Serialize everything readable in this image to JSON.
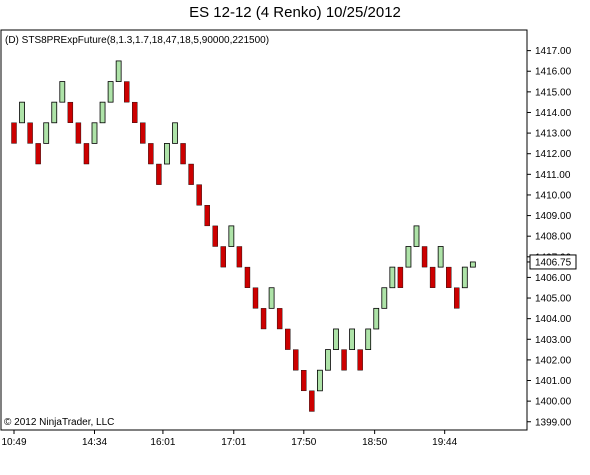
{
  "chart_data": {
    "type": "renko",
    "title": "ES 12-12 (4 Renko)  10/25/2012",
    "strategy_label": "(D) STS8PRExpFuture(8,1.3,1.7,18,47,18,5,90000,221500)",
    "copyright": "© 2012 NinjaTrader, LLC",
    "ylim": [
      1398.6,
      1418.0
    ],
    "y_ticks": [
      "1417.00",
      "1416.00",
      "1415.00",
      "1414.00",
      "1413.00",
      "1412.00",
      "1411.00",
      "1410.00",
      "1409.00",
      "1408.00",
      "1407.00",
      "1406.00",
      "1405.00",
      "1404.00",
      "1403.00",
      "1402.00",
      "1401.00",
      "1400.00",
      "1399.00"
    ],
    "x_ticks": [
      {
        "label": "10:49",
        "bar": 0
      },
      {
        "label": "14:34",
        "bar": 10
      },
      {
        "label": "16:01",
        "bar": 18.5
      },
      {
        "label": "17:01",
        "bar": 27.3
      },
      {
        "label": "17:50",
        "bar": 36
      },
      {
        "label": "18:50",
        "bar": 44.8
      },
      {
        "label": "19:44",
        "bar": 53.5
      }
    ],
    "last_price": {
      "label": "1406.75",
      "value": 1406.75
    },
    "colors": {
      "up": "#aee3a8",
      "down": "#cc0000",
      "outline": "#000000"
    },
    "bricks": [
      {
        "dir": "down",
        "low": 1412.5,
        "high": 1413.5
      },
      {
        "dir": "up",
        "low": 1413.5,
        "high": 1414.5
      },
      {
        "dir": "down",
        "low": 1412.5,
        "high": 1413.5
      },
      {
        "dir": "down",
        "low": 1411.5,
        "high": 1412.5
      },
      {
        "dir": "up",
        "low": 1412.5,
        "high": 1413.5
      },
      {
        "dir": "up",
        "low": 1413.5,
        "high": 1414.5
      },
      {
        "dir": "up",
        "low": 1414.5,
        "high": 1415.5
      },
      {
        "dir": "down",
        "low": 1413.5,
        "high": 1414.5
      },
      {
        "dir": "down",
        "low": 1412.5,
        "high": 1413.5
      },
      {
        "dir": "down",
        "low": 1411.5,
        "high": 1412.5
      },
      {
        "dir": "up",
        "low": 1412.5,
        "high": 1413.5
      },
      {
        "dir": "up",
        "low": 1413.5,
        "high": 1414.5
      },
      {
        "dir": "up",
        "low": 1414.5,
        "high": 1415.5
      },
      {
        "dir": "up",
        "low": 1415.5,
        "high": 1416.5
      },
      {
        "dir": "down",
        "low": 1414.5,
        "high": 1415.5
      },
      {
        "dir": "down",
        "low": 1413.5,
        "high": 1414.5
      },
      {
        "dir": "down",
        "low": 1412.5,
        "high": 1413.5
      },
      {
        "dir": "down",
        "low": 1411.5,
        "high": 1412.5
      },
      {
        "dir": "down",
        "low": 1410.5,
        "high": 1411.5
      },
      {
        "dir": "up",
        "low": 1411.5,
        "high": 1412.5
      },
      {
        "dir": "up",
        "low": 1412.5,
        "high": 1413.5
      },
      {
        "dir": "down",
        "low": 1411.5,
        "high": 1412.5
      },
      {
        "dir": "down",
        "low": 1410.5,
        "high": 1411.5
      },
      {
        "dir": "down",
        "low": 1409.5,
        "high": 1410.5
      },
      {
        "dir": "down",
        "low": 1408.5,
        "high": 1409.5
      },
      {
        "dir": "down",
        "low": 1407.5,
        "high": 1408.5
      },
      {
        "dir": "down",
        "low": 1406.5,
        "high": 1407.5
      },
      {
        "dir": "up",
        "low": 1407.5,
        "high": 1408.5
      },
      {
        "dir": "down",
        "low": 1406.5,
        "high": 1407.5
      },
      {
        "dir": "down",
        "low": 1405.5,
        "high": 1406.5
      },
      {
        "dir": "down",
        "low": 1404.5,
        "high": 1405.5
      },
      {
        "dir": "down",
        "low": 1403.5,
        "high": 1404.5
      },
      {
        "dir": "up",
        "low": 1404.5,
        "high": 1405.5
      },
      {
        "dir": "down",
        "low": 1403.5,
        "high": 1404.5
      },
      {
        "dir": "down",
        "low": 1402.5,
        "high": 1403.5
      },
      {
        "dir": "down",
        "low": 1401.5,
        "high": 1402.5
      },
      {
        "dir": "down",
        "low": 1400.5,
        "high": 1401.5
      },
      {
        "dir": "down",
        "low": 1399.5,
        "high": 1400.5
      },
      {
        "dir": "up",
        "low": 1400.5,
        "high": 1401.5
      },
      {
        "dir": "up",
        "low": 1401.5,
        "high": 1402.5
      },
      {
        "dir": "up",
        "low": 1402.5,
        "high": 1403.5
      },
      {
        "dir": "down",
        "low": 1401.5,
        "high": 1402.5
      },
      {
        "dir": "up",
        "low": 1402.5,
        "high": 1403.5
      },
      {
        "dir": "down",
        "low": 1401.5,
        "high": 1402.5
      },
      {
        "dir": "up",
        "low": 1402.5,
        "high": 1403.5
      },
      {
        "dir": "up",
        "low": 1403.5,
        "high": 1404.5
      },
      {
        "dir": "up",
        "low": 1404.5,
        "high": 1405.5
      },
      {
        "dir": "up",
        "low": 1405.5,
        "high": 1406.5
      },
      {
        "dir": "down",
        "low": 1405.5,
        "high": 1406.5
      },
      {
        "dir": "up",
        "low": 1406.5,
        "high": 1407.5
      },
      {
        "dir": "up",
        "low": 1407.5,
        "high": 1408.5
      },
      {
        "dir": "down",
        "low": 1406.5,
        "high": 1407.5
      },
      {
        "dir": "down",
        "low": 1405.5,
        "high": 1406.5
      },
      {
        "dir": "up",
        "low": 1406.5,
        "high": 1407.5
      },
      {
        "dir": "down",
        "low": 1405.5,
        "high": 1406.5
      },
      {
        "dir": "down",
        "low": 1404.5,
        "high": 1405.5
      },
      {
        "dir": "up",
        "low": 1405.5,
        "high": 1406.5
      },
      {
        "dir": "up",
        "low": 1406.5,
        "high": 1406.75
      }
    ]
  }
}
